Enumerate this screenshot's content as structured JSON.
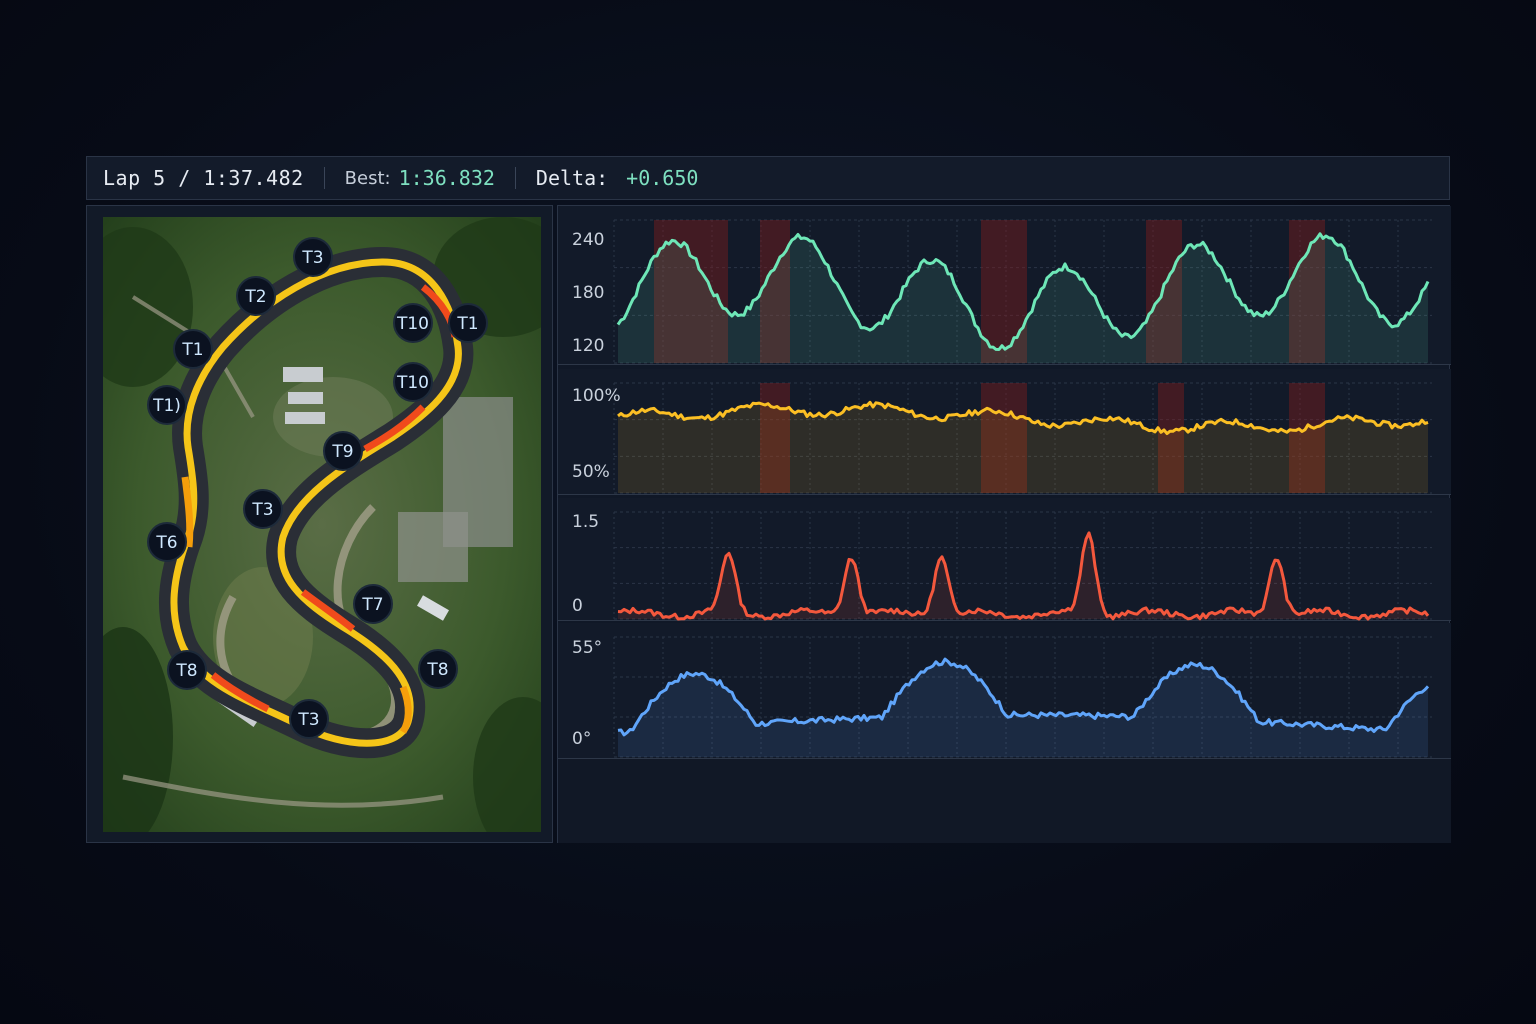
{
  "header": {
    "lap": "Lap 5 / 1:37.482",
    "best_label": "Best:",
    "best_value": "1:36.832",
    "delta_label": "Delta:",
    "delta_value": "+0.650"
  },
  "map": {
    "turn_labels": [
      "T3",
      "T2",
      "T1",
      "T1)",
      "T10",
      "T6",
      "T1",
      "T10",
      "T9",
      "T3",
      "T7",
      "T8",
      "T8",
      "T3"
    ]
  },
  "charts": {
    "speed": {
      "ticks": [
        "240",
        "180",
        "120"
      ],
      "color": "#6ee7b7"
    },
    "throttle": {
      "ticks": [
        "100%",
        "50%"
      ],
      "color": "#fbbf24"
    },
    "brake": {
      "ticks": [
        "1.5",
        "0"
      ],
      "color": "#f4583d"
    },
    "steering": {
      "ticks": [
        "55°",
        "0°"
      ],
      "color": "#60a5fa"
    }
  },
  "colors": {
    "track_fast": "#f5c518",
    "track_mid": "#f59e0b",
    "track_slow": "#f04a1c",
    "highlight_band": "#7f1d1d"
  }
}
